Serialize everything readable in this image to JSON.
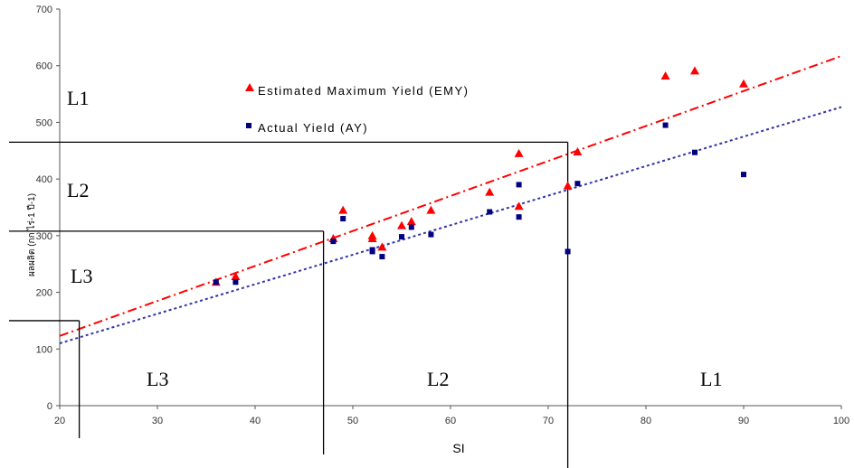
{
  "chart_data": {
    "type": "scatter",
    "xlabel": "SI",
    "ylabel": "ผลผลิต (กก.ไร่-1 ปี-1)",
    "xlim": [
      20,
      100
    ],
    "ylim": [
      0,
      700
    ],
    "x_ticks": [
      "20",
      "30",
      "40",
      "50",
      "60",
      "70",
      "80",
      "90",
      "100"
    ],
    "y_ticks": [
      "0",
      "100",
      "200",
      "300",
      "400",
      "500",
      "600",
      "700"
    ],
    "grid": false,
    "series": [
      {
        "name": "Estimated Maximum Yield (EMY)",
        "marker": "triangle",
        "color": "#ff0000",
        "points": [
          [
            36,
            218
          ],
          [
            38,
            228
          ],
          [
            48,
            295
          ],
          [
            49,
            345
          ],
          [
            52,
            300
          ],
          [
            52,
            295
          ],
          [
            53,
            280
          ],
          [
            55,
            318
          ],
          [
            56,
            325
          ],
          [
            58,
            345
          ],
          [
            64,
            377
          ],
          [
            67,
            445
          ],
          [
            67,
            352
          ],
          [
            72,
            388
          ],
          [
            73,
            448
          ],
          [
            82,
            582
          ],
          [
            85,
            591
          ],
          [
            90,
            568
          ]
        ],
        "trendline": {
          "x": [
            20,
            100
          ],
          "y": [
            123,
            617
          ],
          "color": "#ff0000",
          "style": "dash-dot"
        }
      },
      {
        "name": "Actual Yield (AY)",
        "marker": "square",
        "color": "#000080",
        "points": [
          [
            36,
            218
          ],
          [
            38,
            218
          ],
          [
            48,
            290
          ],
          [
            49,
            330
          ],
          [
            52,
            275
          ],
          [
            52,
            272
          ],
          [
            53,
            263
          ],
          [
            55,
            298
          ],
          [
            56,
            315
          ],
          [
            58,
            302
          ],
          [
            64,
            342
          ],
          [
            67,
            390
          ],
          [
            67,
            333
          ],
          [
            72,
            272
          ],
          [
            73,
            392
          ],
          [
            82,
            495
          ],
          [
            85,
            447
          ],
          [
            90,
            408
          ]
        ],
        "trendline": {
          "x": [
            20,
            100
          ],
          "y": [
            110,
            527
          ],
          "color": "#3333aa",
          "style": "dotted"
        }
      }
    ],
    "legend_placement": "upper-left",
    "zone_labels": {
      "left": [
        "L1",
        "L2",
        "L3"
      ],
      "bottom": [
        "L3",
        "L2",
        "L1"
      ]
    }
  }
}
